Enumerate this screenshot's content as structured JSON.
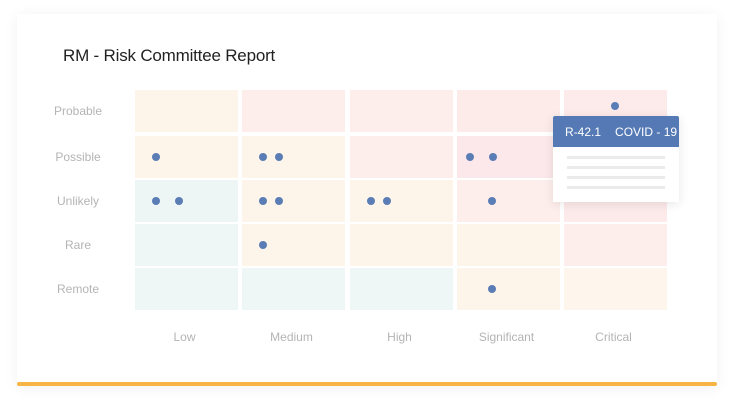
{
  "title": "RM - Risk Committee Report",
  "chart_data": {
    "type": "heatmap",
    "title": "RM - Risk Committee Report",
    "x_categories": [
      "Low",
      "Medium",
      "High",
      "Significant",
      "Critical"
    ],
    "y_categories": [
      "Probable",
      "Possible",
      "Unlikely",
      "Rare",
      "Remote"
    ],
    "cell_colors": [
      [
        "#fef5ea",
        "#fdeeec",
        "#fdeeec",
        "#fdebea",
        "#fdeaea"
      ],
      [
        "#fef5ea",
        "#fef5ea",
        "#fdeeec",
        "#fce8ea",
        "#fdeaea"
      ],
      [
        "#edf6f4",
        "#fef5ea",
        "#fef5ea",
        "#fdeeec",
        "#fdeaea"
      ],
      [
        "#eef7f5",
        "#fef5ea",
        "#fef5ea",
        "#fef5ea",
        "#fdeeec"
      ],
      [
        "#eef7f5",
        "#eef7f5",
        "#eef7f5",
        "#fef5ea",
        "#fef6ec"
      ]
    ],
    "counts": [
      {
        "likelihood": "Probable",
        "impact": "Critical",
        "count": 1
      },
      {
        "likelihood": "Possible",
        "impact": "Low",
        "count": 1
      },
      {
        "likelihood": "Possible",
        "impact": "Medium",
        "count": 2
      },
      {
        "likelihood": "Possible",
        "impact": "Significant",
        "count": 2
      },
      {
        "likelihood": "Unlikely",
        "impact": "Low",
        "count": 2
      },
      {
        "likelihood": "Unlikely",
        "impact": "Medium",
        "count": 2
      },
      {
        "likelihood": "Unlikely",
        "impact": "High",
        "count": 2
      },
      {
        "likelihood": "Unlikely",
        "impact": "Significant",
        "count": 1
      },
      {
        "likelihood": "Rare",
        "impact": "Medium",
        "count": 1
      },
      {
        "likelihood": "Remote",
        "impact": "Significant",
        "count": 1
      }
    ],
    "dot_color": "#5a7db6"
  },
  "tooltip": {
    "id": "R-42.1",
    "name": "COVID - 19",
    "color": "#5479b4"
  },
  "accent_bar_color": "#f6b545"
}
